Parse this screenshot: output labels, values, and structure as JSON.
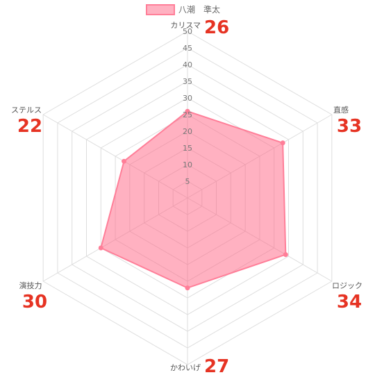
{
  "chart_data": {
    "type": "radar",
    "series": [
      {
        "name": "八潮　準太",
        "values": [
          26,
          33,
          34,
          27,
          30,
          22
        ]
      }
    ],
    "categories": [
      "カリスマ",
      "直感",
      "ロジック",
      "かわいげ",
      "演技力",
      "ステルス"
    ],
    "rmin": 0,
    "rmax": 50,
    "ticks": [
      5,
      10,
      15,
      20,
      25,
      30,
      35,
      40,
      45,
      50
    ],
    "value_labels": [
      "26",
      "33",
      "34",
      "27",
      "30",
      "22"
    ],
    "legend_position": "top",
    "grid": true
  },
  "colors": {
    "fill": "#ff6384",
    "stroke": "#ff7e98",
    "grid": "#dddddd",
    "value_label": "#e63323"
  }
}
